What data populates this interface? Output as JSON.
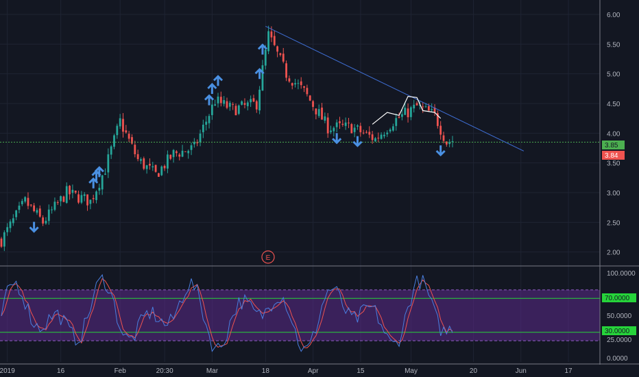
{
  "chart_data": {
    "type": "candlestick",
    "price_panel": {
      "ylim": [
        1.8,
        6.15
      ],
      "yticks": [
        "6.00",
        "5.50",
        "5.00",
        "4.50",
        "4.00",
        "3.50",
        "3.00",
        "2.50",
        "2.00"
      ],
      "ytick_values": [
        6.0,
        5.5,
        5.0,
        4.5,
        4.0,
        3.5,
        3.0,
        2.5,
        2.0
      ],
      "support_level": 3.85,
      "support_label": "3.85",
      "last_price": 3.84,
      "last_price_label": "3.84",
      "earnings_marker": "E",
      "trendline": [
        [
          0.0,
          5.8
        ],
        [
          103.0,
          3.7
        ]
      ],
      "anchors": [
        [
          0,
          2.2
        ],
        [
          8,
          2.85
        ],
        [
          14,
          2.5
        ],
        [
          22,
          3.0
        ],
        [
          30,
          2.85
        ],
        [
          35,
          3.4
        ],
        [
          40,
          4.2
        ],
        [
          46,
          3.55
        ],
        [
          52,
          3.3
        ],
        [
          58,
          3.65
        ],
        [
          65,
          3.75
        ],
        [
          72,
          4.55
        ],
        [
          78,
          4.4
        ],
        [
          86,
          4.5
        ],
        [
          90,
          5.65
        ],
        [
          96,
          5.0
        ],
        [
          102,
          4.7
        ],
        [
          110,
          4.1
        ],
        [
          118,
          4.1
        ],
        [
          126,
          3.9
        ],
        [
          132,
          4.2
        ],
        [
          140,
          4.45
        ],
        [
          146,
          4.3
        ],
        [
          150,
          3.85
        ],
        [
          152,
          3.88
        ]
      ],
      "x_start": 0,
      "x_end": 152,
      "up_arrows_x": [
        31,
        32,
        33,
        70,
        71,
        73,
        87,
        88
      ],
      "down_arrows_x": [
        11,
        113,
        120,
        148
      ]
    },
    "stoch_panel": {
      "ylim": [
        -5,
        105
      ],
      "yticks": [
        "100.0000",
        "50.0000",
        "0.0000"
      ],
      "ytick_values": [
        100,
        50,
        0
      ],
      "upper_level": 70,
      "upper_label": "70.0000",
      "lower_level": 30,
      "lower_label": "30.0000",
      "band_top": 80,
      "band_bottom": 20,
      "extra_tick": "25.0000",
      "extra_tick_value": 25,
      "series": [
        {
          "values": "k"
        },
        {
          "values": "d"
        }
      ]
    },
    "x_axis": {
      "labels": [
        "2019",
        "16",
        "Feb",
        "20:30",
        "Mar",
        "18",
        "Apr",
        "15",
        "May",
        "20",
        "Jun",
        "17"
      ],
      "positions": [
        2,
        20,
        40,
        55,
        71,
        89,
        105,
        121,
        138,
        159,
        175,
        191
      ]
    }
  },
  "colors": {
    "up": "#26a69a",
    "down": "#ef5350",
    "arrow": "#4a90e2",
    "support": "#4caf50",
    "trend": "#3f6fd6",
    "stoch_k": "#4a7fe0",
    "stoch_d": "#ef5350",
    "band": "#5b2a8a",
    "level": "#26d43a"
  }
}
